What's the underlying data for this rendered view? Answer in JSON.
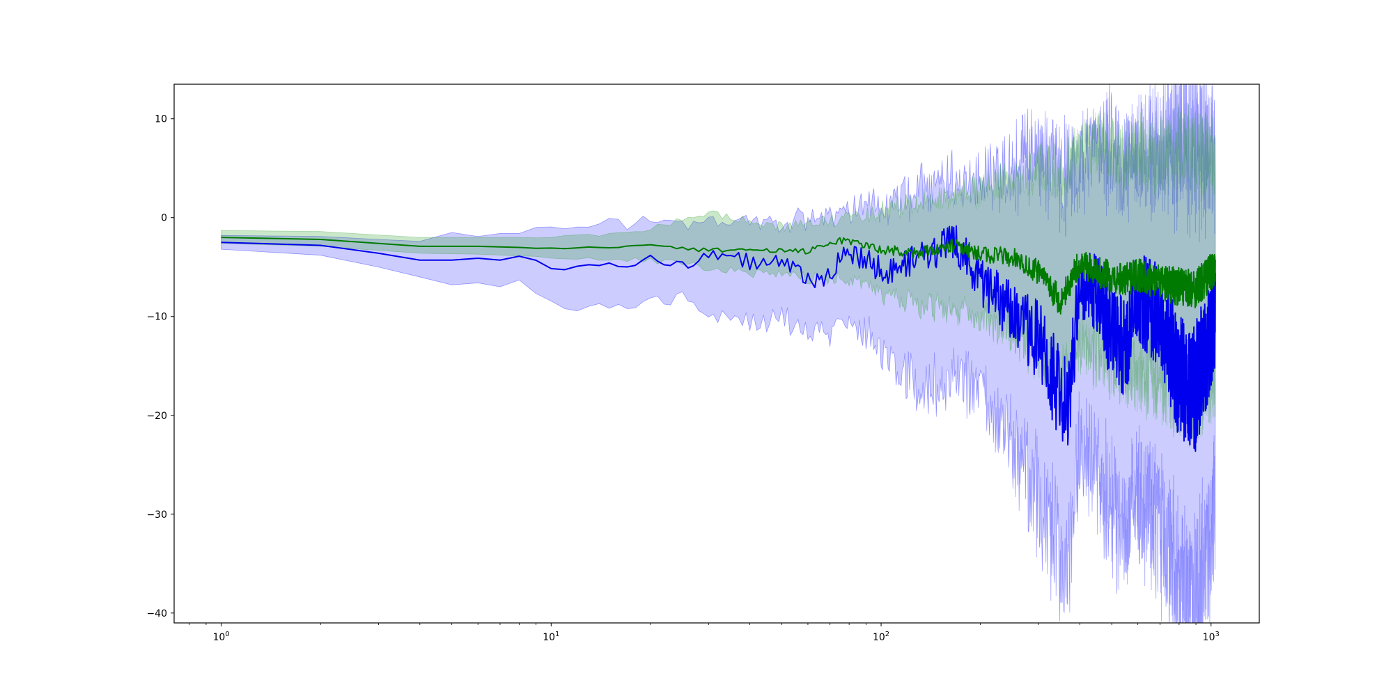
{
  "chart_data": {
    "type": "line",
    "title": "",
    "xlabel": "",
    "ylabel": "",
    "x_scale": "log",
    "xlim": [
      0.72,
      1400
    ],
    "ylim": [
      -41,
      13.5
    ],
    "grid": false,
    "legend": "none",
    "x_ticks": [
      {
        "value": 1,
        "base": "10",
        "exp": "0"
      },
      {
        "value": 10,
        "base": "10",
        "exp": "1"
      },
      {
        "value": 100,
        "base": "10",
        "exp": "2"
      },
      {
        "value": 1000,
        "base": "10",
        "exp": "3"
      }
    ],
    "y_ticks": [
      {
        "value": 10,
        "label": "10"
      },
      {
        "value": 0,
        "label": "0"
      },
      {
        "value": -10,
        "label": "−10"
      },
      {
        "value": -20,
        "label": "−20"
      },
      {
        "value": -30,
        "label": "−30"
      },
      {
        "value": -40,
        "label": "−40"
      }
    ],
    "series": [
      {
        "color": "#0000ee",
        "band_color": "#0000ff",
        "anchors": [
          {
            "x": 1,
            "mean": -2.5,
            "lower": -3.2,
            "upper": -1.8
          },
          {
            "x": 2,
            "mean": -2.8,
            "lower": -3.8,
            "upper": -1.9
          },
          {
            "x": 3,
            "mean": -3.6,
            "lower": -5.0,
            "upper": -2.2
          },
          {
            "x": 4,
            "mean": -4.3,
            "lower": -6.0,
            "upper": -2.4
          },
          {
            "x": 5,
            "mean": -4.3,
            "lower": -6.8,
            "upper": -1.5
          },
          {
            "x": 6,
            "mean": -4.1,
            "lower": -6.6,
            "upper": -1.9
          },
          {
            "x": 7,
            "mean": -4.3,
            "lower": -7.0,
            "upper": -1.6
          },
          {
            "x": 8,
            "mean": -3.9,
            "lower": -6.3,
            "upper": -1.6
          },
          {
            "x": 10,
            "mean": -5.1,
            "lower": -8.6,
            "upper": -1.2
          },
          {
            "x": 12,
            "mean": -4.7,
            "lower": -9.2,
            "upper": -0.8
          },
          {
            "x": 15,
            "mean": -4.9,
            "lower": -9.0,
            "upper": -0.7
          },
          {
            "x": 20,
            "mean": -4.3,
            "lower": -8.5,
            "upper": -0.5
          },
          {
            "x": 25,
            "mean": -4.8,
            "lower": -8.0,
            "upper": -0.4
          },
          {
            "x": 30,
            "mean": -3.6,
            "lower": -9.2,
            "upper": -0.6
          },
          {
            "x": 40,
            "mean": -4.5,
            "lower": -10.5,
            "upper": -0.2
          },
          {
            "x": 50,
            "mean": -4.3,
            "lower": -9.8,
            "upper": -0.5
          },
          {
            "x": 65,
            "mean": -6.6,
            "lower": -11.8,
            "upper": -0.2
          },
          {
            "x": 80,
            "mean": -3.4,
            "lower": -10.0,
            "upper": 0.3
          },
          {
            "x": 100,
            "mean": -5.3,
            "lower": -13.0,
            "upper": 1.2
          },
          {
            "x": 130,
            "mean": -4.5,
            "lower": -17.0,
            "upper": 2.0
          },
          {
            "x": 170,
            "mean": -2.5,
            "lower": -15.5,
            "upper": 3.5
          },
          {
            "x": 200,
            "mean": -6.5,
            "lower": -17.0,
            "upper": 2.8
          },
          {
            "x": 250,
            "mean": -9.5,
            "lower": -22.0,
            "upper": 4.5
          },
          {
            "x": 300,
            "mean": -12.5,
            "lower": -27.5,
            "upper": 5.5
          },
          {
            "x": 340,
            "mean": -17.0,
            "lower": -31.0,
            "upper": 5.0
          },
          {
            "x": 370,
            "mean": -19.5,
            "lower": -35.0,
            "upper": 3.0
          },
          {
            "x": 400,
            "mean": -6.5,
            "lower": -22.0,
            "upper": 5.0
          },
          {
            "x": 450,
            "mean": -7.5,
            "lower": -24.0,
            "upper": 6.0
          },
          {
            "x": 500,
            "mean": -12.0,
            "lower": -29.0,
            "upper": 6.0
          },
          {
            "x": 550,
            "mean": -13.0,
            "lower": -31.0,
            "upper": 5.0
          },
          {
            "x": 600,
            "mean": -8.0,
            "lower": -27.0,
            "upper": 5.5
          },
          {
            "x": 700,
            "mean": -10.0,
            "lower": -30.0,
            "upper": 6.0
          },
          {
            "x": 800,
            "mean": -16.0,
            "lower": -36.0,
            "upper": 6.5
          },
          {
            "x": 900,
            "mean": -17.0,
            "lower": -38.0,
            "upper": 6.0
          },
          {
            "x": 1000,
            "mean": -12.0,
            "lower": -30.0,
            "upper": 6.0
          },
          {
            "x": 1030,
            "mean": -10.0,
            "lower": -28.0,
            "upper": 5.0
          }
        ]
      },
      {
        "color": "#007a00",
        "band_color": "#2ca02c",
        "anchors": [
          {
            "x": 1,
            "mean": -2.0,
            "lower": -2.6,
            "upper": -1.3
          },
          {
            "x": 2,
            "mean": -2.2,
            "lower": -2.9,
            "upper": -1.4
          },
          {
            "x": 4,
            "mean": -2.9,
            "lower": -3.6,
            "upper": -2.0
          },
          {
            "x": 6,
            "mean": -2.9,
            "lower": -3.7,
            "upper": -2.0
          },
          {
            "x": 10,
            "mean": -3.1,
            "lower": -4.0,
            "upper": -2.0
          },
          {
            "x": 15,
            "mean": -3.0,
            "lower": -4.2,
            "upper": -1.7
          },
          {
            "x": 20,
            "mean": -2.8,
            "lower": -4.3,
            "upper": -1.2
          },
          {
            "x": 30,
            "mean": -3.3,
            "lower": -5.0,
            "upper": 0.5
          },
          {
            "x": 40,
            "mean": -3.3,
            "lower": -5.5,
            "upper": -0.4
          },
          {
            "x": 50,
            "mean": -3.3,
            "lower": -5.5,
            "upper": -1.0
          },
          {
            "x": 60,
            "mean": -3.4,
            "lower": -6.0,
            "upper": -0.8
          },
          {
            "x": 75,
            "mean": -2.3,
            "lower": -6.0,
            "upper": -0.2
          },
          {
            "x": 90,
            "mean": -2.8,
            "lower": -6.5,
            "upper": 0.2
          },
          {
            "x": 100,
            "mean": -3.2,
            "lower": -7.5,
            "upper": 0.6
          },
          {
            "x": 130,
            "mean": -3.6,
            "lower": -8.5,
            "upper": 1.2
          },
          {
            "x": 170,
            "mean": -2.8,
            "lower": -9.0,
            "upper": 2.0
          },
          {
            "x": 200,
            "mean": -3.7,
            "lower": -10.0,
            "upper": 2.5
          },
          {
            "x": 250,
            "mean": -4.0,
            "lower": -11.0,
            "upper": 3.5
          },
          {
            "x": 300,
            "mean": -5.5,
            "lower": -13.0,
            "upper": 4.5
          },
          {
            "x": 350,
            "mean": -8.5,
            "lower": -16.0,
            "upper": 4.0
          },
          {
            "x": 400,
            "mean": -4.5,
            "lower": -12.0,
            "upper": 6.0
          },
          {
            "x": 450,
            "mean": -5.5,
            "lower": -13.0,
            "upper": 7.0
          },
          {
            "x": 500,
            "mean": -6.0,
            "lower": -14.0,
            "upper": 6.5
          },
          {
            "x": 550,
            "mean": -6.2,
            "lower": -14.5,
            "upper": 5.5
          },
          {
            "x": 600,
            "mean": -5.8,
            "lower": -15.0,
            "upper": 6.0
          },
          {
            "x": 700,
            "mean": -6.5,
            "lower": -16.0,
            "upper": 5.5
          },
          {
            "x": 800,
            "mean": -7.0,
            "lower": -17.0,
            "upper": 6.0
          },
          {
            "x": 900,
            "mean": -7.2,
            "lower": -17.0,
            "upper": 6.0
          },
          {
            "x": 1000,
            "mean": -5.5,
            "lower": -16.0,
            "upper": 5.5
          },
          {
            "x": 1030,
            "mean": -5.0,
            "lower": -15.0,
            "upper": 5.0
          }
        ]
      }
    ]
  }
}
